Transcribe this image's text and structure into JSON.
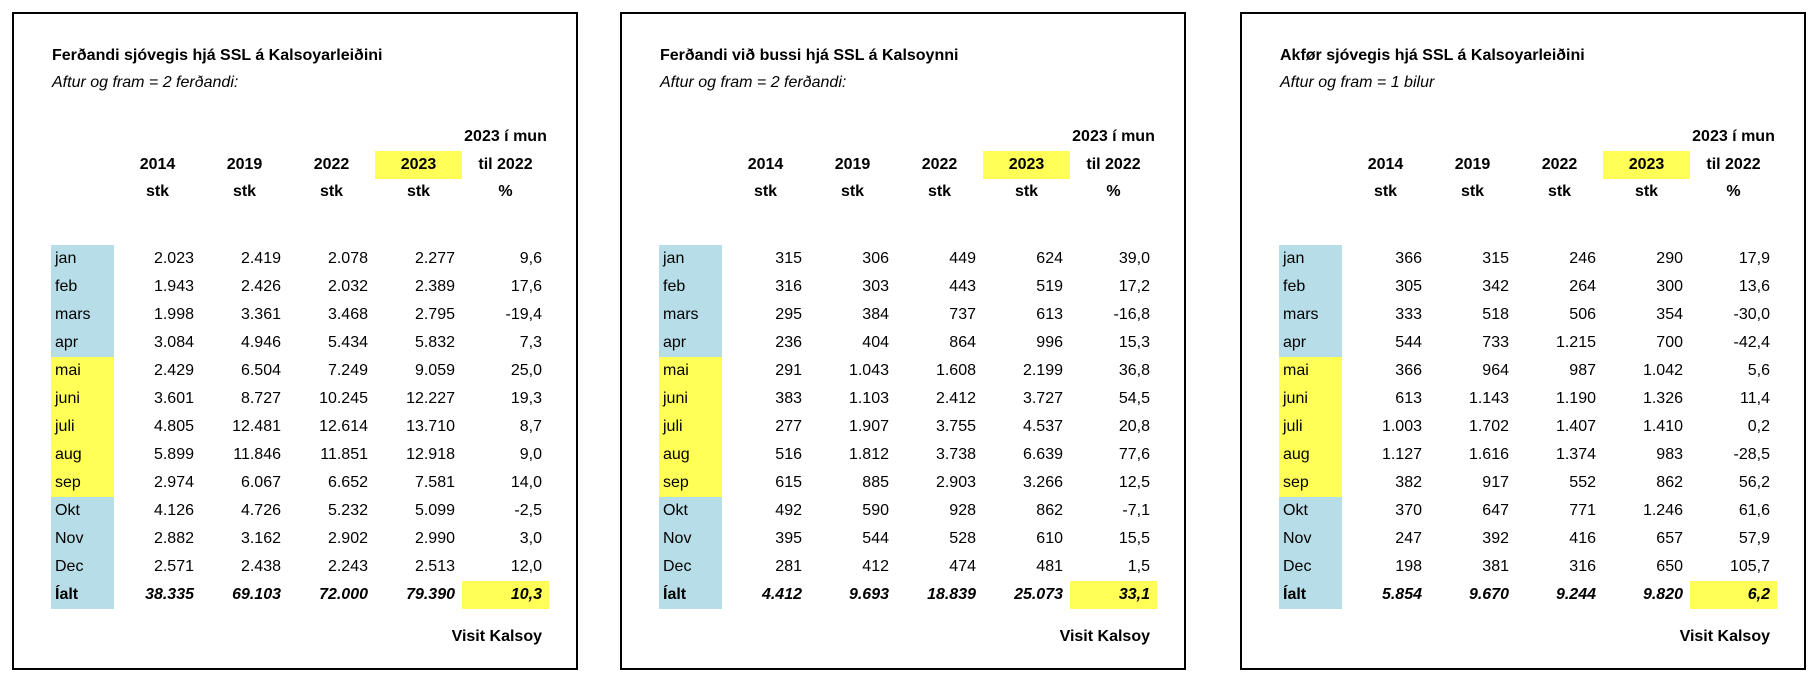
{
  "panels": [
    {
      "title": "Ferðandi sjóvegis hjá SSL á Kalsoyarleiðini",
      "subtitle": "Aftur og fram = 2 ferðandi:",
      "header": {
        "note": "2023 í mun",
        "columns": [
          "2014",
          "2019",
          "2022",
          "2023",
          "til 2022"
        ],
        "units": [
          "stk",
          "stk",
          "stk",
          "stk",
          "%"
        ]
      },
      "rows": [
        [
          "jan",
          "2.023",
          "2.419",
          "2.078",
          "2.277",
          "9,6"
        ],
        [
          "feb",
          "1.943",
          "2.426",
          "2.032",
          "2.389",
          "17,6"
        ],
        [
          "mars",
          "1.998",
          "3.361",
          "3.468",
          "2.795",
          "-19,4"
        ],
        [
          "apr",
          "3.084",
          "4.946",
          "5.434",
          "5.832",
          "7,3"
        ],
        [
          "mai",
          "2.429",
          "6.504",
          "7.249",
          "9.059",
          "25,0"
        ],
        [
          "juni",
          "3.601",
          "8.727",
          "10.245",
          "12.227",
          "19,3"
        ],
        [
          "juli",
          "4.805",
          "12.481",
          "12.614",
          "13.710",
          "8,7"
        ],
        [
          "aug",
          "5.899",
          "11.846",
          "11.851",
          "12.918",
          "9,0"
        ],
        [
          "sep",
          "2.974",
          "6.067",
          "6.652",
          "7.581",
          "14,0"
        ],
        [
          "Okt",
          "4.126",
          "4.726",
          "5.232",
          "5.099",
          "-2,5"
        ],
        [
          "Nov",
          "2.882",
          "3.162",
          "2.902",
          "2.990",
          "3,0"
        ],
        [
          "Dec",
          "2.571",
          "2.438",
          "2.243",
          "2.513",
          "12,0"
        ]
      ],
      "total": [
        "Íalt",
        "38.335",
        "69.103",
        "72.000",
        "79.390",
        "10,3"
      ],
      "footer": "Visit Kalsoy"
    },
    {
      "title": "Ferðandi við bussi hjá SSL á Kalsoynni",
      "subtitle": "Aftur og fram = 2 ferðandi:",
      "header": {
        "note": "2023 í mun",
        "columns": [
          "2014",
          "2019",
          "2022",
          "2023",
          "til 2022"
        ],
        "units": [
          "stk",
          "stk",
          "stk",
          "stk",
          "%"
        ]
      },
      "rows": [
        [
          "jan",
          "315",
          "306",
          "449",
          "624",
          "39,0"
        ],
        [
          "feb",
          "316",
          "303",
          "443",
          "519",
          "17,2"
        ],
        [
          "mars",
          "295",
          "384",
          "737",
          "613",
          "-16,8"
        ],
        [
          "apr",
          "236",
          "404",
          "864",
          "996",
          "15,3"
        ],
        [
          "mai",
          "291",
          "1.043",
          "1.608",
          "2.199",
          "36,8"
        ],
        [
          "juni",
          "383",
          "1.103",
          "2.412",
          "3.727",
          "54,5"
        ],
        [
          "juli",
          "277",
          "1.907",
          "3.755",
          "4.537",
          "20,8"
        ],
        [
          "aug",
          "516",
          "1.812",
          "3.738",
          "6.639",
          "77,6"
        ],
        [
          "sep",
          "615",
          "885",
          "2.903",
          "3.266",
          "12,5"
        ],
        [
          "Okt",
          "492",
          "590",
          "928",
          "862",
          "-7,1"
        ],
        [
          "Nov",
          "395",
          "544",
          "528",
          "610",
          "15,5"
        ],
        [
          "Dec",
          "281",
          "412",
          "474",
          "481",
          "1,5"
        ]
      ],
      "total": [
        "Íalt",
        "4.412",
        "9.693",
        "18.839",
        "25.073",
        "33,1"
      ],
      "footer": "Visit Kalsoy"
    },
    {
      "title": "Akfør sjóvegis hjá SSL á Kalsoyarleiðini",
      "subtitle": "Aftur og fram = 1 bilur",
      "header": {
        "note": "2023 í mun",
        "columns": [
          "2014",
          "2019",
          "2022",
          "2023",
          "til 2022"
        ],
        "units": [
          "stk",
          "stk",
          "stk",
          "stk",
          "%"
        ]
      },
      "rows": [
        [
          "jan",
          "366",
          "315",
          "246",
          "290",
          "17,9"
        ],
        [
          "feb",
          "305",
          "342",
          "264",
          "300",
          "13,6"
        ],
        [
          "mars",
          "333",
          "518",
          "506",
          "354",
          "-30,0"
        ],
        [
          "apr",
          "544",
          "733",
          "1.215",
          "700",
          "-42,4"
        ],
        [
          "mai",
          "366",
          "964",
          "987",
          "1.042",
          "5,6"
        ],
        [
          "juni",
          "613",
          "1.143",
          "1.190",
          "1.326",
          "11,4"
        ],
        [
          "juli",
          "1.003",
          "1.702",
          "1.407",
          "1.410",
          "0,2"
        ],
        [
          "aug",
          "1.127",
          "1.616",
          "1.374",
          "983",
          "-28,5"
        ],
        [
          "sep",
          "382",
          "917",
          "552",
          "862",
          "56,2"
        ],
        [
          "Okt",
          "370",
          "647",
          "771",
          "1.246",
          "61,6"
        ],
        [
          "Nov",
          "247",
          "392",
          "416",
          "657",
          "57,9"
        ],
        [
          "Dec",
          "198",
          "381",
          "316",
          "650",
          "105,7"
        ]
      ],
      "total": [
        "Íalt",
        "5.854",
        "9.670",
        "9.244",
        "9.820",
        "6,2"
      ],
      "footer": "Visit Kalsoy"
    }
  ]
}
